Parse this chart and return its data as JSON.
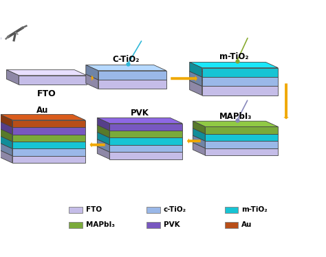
{
  "background_color": "#ffffff",
  "layer_colors": {
    "FTO": "#c5bde8",
    "c-TiO2": "#9ab8e8",
    "m-TiO2": "#17c4d4",
    "MAPbI3": "#7aaa3a",
    "PVK": "#7858c0",
    "Au": "#b84e18"
  },
  "arrow_color": "#f0a800",
  "needle_colors": {
    "c-TiO2": "#30b8d8",
    "m-TiO2": "#88aa30",
    "MAPbI3": "#8888bb"
  },
  "legend_labels": [
    "FTO",
    "c-TiO₂",
    "m-TiO₂",
    "MAPbI₃",
    "PVK",
    "Au"
  ],
  "legend_colors": [
    "#c5bde8",
    "#9ab8e8",
    "#17c4d4",
    "#7aaa3a",
    "#7858c0",
    "#b84e18"
  ]
}
